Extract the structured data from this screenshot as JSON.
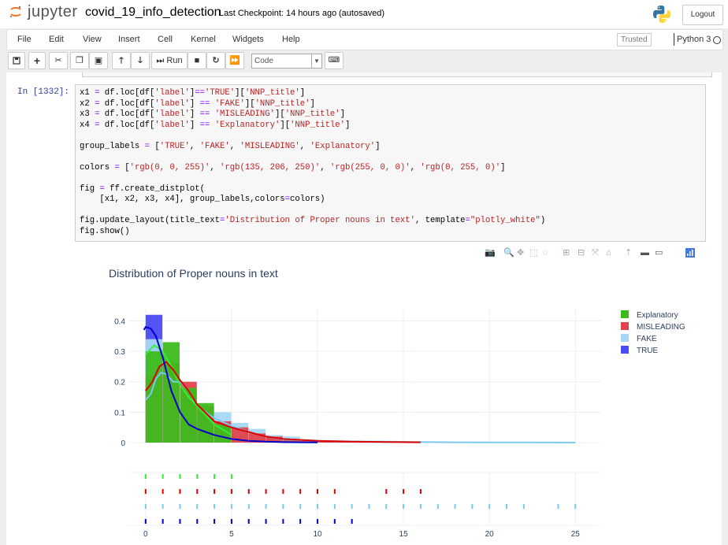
{
  "header": {
    "logo_text": "jupyter",
    "notebook_name": "covid_19_info_detection",
    "checkpoint": "Last Checkpoint: 14 hours ago",
    "autosave": "(autosaved)",
    "logout_label": "Logout"
  },
  "menubar": {
    "items": [
      "File",
      "Edit",
      "View",
      "Insert",
      "Cell",
      "Kernel",
      "Widgets",
      "Help"
    ],
    "trusted": "Trusted",
    "kernel": "Python 3"
  },
  "toolbar": {
    "run_label": "Run",
    "cell_type": "Code",
    "icons": [
      "save-icon",
      "plus-icon",
      "scissors-icon",
      "copy-icon",
      "paste-icon",
      "arrow-up-icon",
      "arrow-down-icon",
      "run-icon",
      "stop-icon",
      "restart-icon",
      "fast-forward-icon",
      "keyboard-icon"
    ]
  },
  "cell": {
    "prompt": "In [1332]:",
    "code_lines": [
      "x1 = df.loc[df['label']=='TRUE']['NNP_title']",
      "x2 = df.loc[df['label'] == 'FAKE']['NNP_title']",
      "x3 = df.loc[df['label'] == 'MISLEADING']['NNP_title']",
      "x4 = df.loc[df['label'] == 'Explanatory']['NNP_title']",
      "",
      "group_labels = ['TRUE', 'FAKE', 'MISLEADING', 'Explanatory']",
      "",
      "colors = ['rgb(0, 0, 255)', 'rgb(135, 206, 250)', 'rgb(255, 0, 0)', 'rgb(0, 255, 0)']",
      "",
      "fig = ff.create_distplot(",
      "    [x1, x2, x3, x4], group_labels,colors=colors)",
      "",
      "fig.update_layout(title_text='Distribution of Proper nouns in text', template=\"plotly_white\")",
      "fig.show()"
    ]
  },
  "modebar": {
    "icons": [
      "camera-icon",
      "zoom-icon",
      "pan-icon",
      "box-select-icon",
      "lasso-icon",
      "zoom-in-icon",
      "zoom-out-icon",
      "autoscale-icon",
      "home-icon",
      "spike-lines-icon",
      "hover-closest-icon",
      "hover-compare-icon",
      "plotly-logo-icon"
    ]
  },
  "chart_data": {
    "type": "bar",
    "title": "Distribution of Proper nouns in text",
    "xlim": [
      -1,
      26.5
    ],
    "ylim": [
      0,
      0.44
    ],
    "yticks": [
      0,
      0.1,
      0.2,
      0.3,
      0.4
    ],
    "ytick_labels": [
      "0",
      "0.1",
      "0.2",
      "0.3",
      "0.4"
    ],
    "xticks": [
      0,
      5,
      10,
      15,
      20,
      25
    ],
    "xtick_labels": [
      "0",
      "5",
      "10",
      "15",
      "20",
      "25"
    ],
    "grid": true,
    "legend_position": "top-right",
    "legend": [
      "Explanatory",
      "MISLEADING",
      "FAKE",
      "TRUE"
    ],
    "series": [
      {
        "name": "TRUE",
        "color": "#4b4bf4",
        "line_color": "#0000cc",
        "bin_width": 1,
        "bins": [
          [
            0,
            0.42
          ],
          [
            1,
            0.26
          ],
          [
            2,
            0.1
          ],
          [
            3,
            0.07
          ],
          [
            4,
            0.04
          ],
          [
            5,
            0.025
          ],
          [
            6,
            0.015
          ],
          [
            7,
            0.01
          ],
          [
            8,
            0.005
          ],
          [
            9,
            0.003
          ],
          [
            10,
            0.002
          ],
          [
            11,
            0.001
          ]
        ],
        "kde": [
          [
            -0.1,
            0.37
          ],
          [
            0,
            0.38
          ],
          [
            0.3,
            0.375
          ],
          [
            0.6,
            0.35
          ],
          [
            1,
            0.28
          ],
          [
            1.5,
            0.17
          ],
          [
            2,
            0.1
          ],
          [
            2.5,
            0.06
          ],
          [
            3,
            0.045
          ],
          [
            3.5,
            0.035
          ],
          [
            4,
            0.025
          ],
          [
            5,
            0.012
          ],
          [
            6,
            0.006
          ],
          [
            7,
            0.003
          ],
          [
            8,
            0.0015
          ],
          [
            9,
            0.001
          ],
          [
            10,
            0.0005
          ]
        ],
        "rugs": [
          0,
          1,
          2,
          3,
          4,
          5,
          6,
          7,
          8,
          9,
          10,
          11,
          12
        ]
      },
      {
        "name": "FAKE",
        "color": "#a6d7f5",
        "line_color": "#7ac8ee",
        "bin_width": 1,
        "bins": [
          [
            0,
            0.34
          ],
          [
            1,
            0.25
          ],
          [
            2,
            0.17
          ],
          [
            3,
            0.12
          ],
          [
            4,
            0.1
          ],
          [
            5,
            0.065
          ],
          [
            6,
            0.045
          ],
          [
            7,
            0.025
          ],
          [
            8,
            0.02
          ],
          [
            9,
            0.01
          ],
          [
            10,
            0.008
          ],
          [
            11,
            0.005
          ],
          [
            12,
            0.004
          ],
          [
            13,
            0.003
          ],
          [
            14,
            0.002
          ],
          [
            15,
            0.002
          ],
          [
            16,
            0.001
          ]
        ],
        "kde": [
          [
            0,
            0.14
          ],
          [
            0.3,
            0.16
          ],
          [
            0.6,
            0.21
          ],
          [
            0.9,
            0.23
          ],
          [
            1.2,
            0.225
          ],
          [
            1.6,
            0.2
          ],
          [
            2,
            0.2
          ],
          [
            2.5,
            0.17
          ],
          [
            3,
            0.12
          ],
          [
            4,
            0.08
          ],
          [
            5,
            0.055
          ],
          [
            6,
            0.035
          ],
          [
            7,
            0.02
          ],
          [
            8,
            0.01
          ],
          [
            10,
            0.006
          ],
          [
            12,
            0.004
          ],
          [
            14,
            0.003
          ],
          [
            16,
            0.002
          ],
          [
            18,
            0.001
          ],
          [
            20,
            0.0006
          ],
          [
            22,
            0.0004
          ],
          [
            25,
            0.0002
          ]
        ],
        "rugs": [
          0,
          1,
          2,
          3,
          4,
          5,
          6,
          7,
          8,
          9,
          10,
          11,
          12,
          13,
          14,
          15,
          16,
          17,
          18,
          19,
          20,
          21,
          22,
          24,
          25
        ]
      },
      {
        "name": "MISLEADING",
        "color": "#e0444c",
        "line_color": "#dd0000",
        "bin_width": 1,
        "bins": [
          [
            0,
            0.22
          ],
          [
            1,
            0.26
          ],
          [
            2,
            0.2
          ],
          [
            3,
            0.12
          ],
          [
            4,
            0.07
          ],
          [
            5,
            0.05
          ],
          [
            6,
            0.03
          ],
          [
            7,
            0.02
          ],
          [
            8,
            0.012
          ],
          [
            9,
            0.008
          ],
          [
            10,
            0.005
          ],
          [
            11,
            0.003
          ],
          [
            12,
            0.002
          ],
          [
            14,
            0.001
          ],
          [
            15,
            0.001
          ]
        ],
        "kde": [
          [
            0,
            0.17
          ],
          [
            0.4,
            0.2
          ],
          [
            0.8,
            0.25
          ],
          [
            1.2,
            0.265
          ],
          [
            1.6,
            0.24
          ],
          [
            2,
            0.205
          ],
          [
            2.5,
            0.17
          ],
          [
            3,
            0.125
          ],
          [
            4,
            0.07
          ],
          [
            5,
            0.05
          ],
          [
            6,
            0.035
          ],
          [
            7,
            0.02
          ],
          [
            8,
            0.012
          ],
          [
            10,
            0.006
          ],
          [
            12,
            0.003
          ],
          [
            14,
            0.002
          ],
          [
            16,
            0.001
          ]
        ],
        "rugs": [
          0,
          1,
          2,
          3,
          4,
          5,
          6,
          7,
          8,
          9,
          10,
          11,
          14,
          15,
          16
        ]
      },
      {
        "name": "Explanatory",
        "color": "#3cbc1c",
        "line_color": "#33ee33",
        "bin_width": 1,
        "bins": [
          [
            0,
            0.3
          ],
          [
            1,
            0.33
          ],
          [
            2,
            0.18
          ],
          [
            3,
            0.13
          ],
          [
            4,
            0.06
          ]
        ],
        "kde": [
          [
            0,
            0.29
          ],
          [
            0.5,
            0.32
          ],
          [
            1,
            0.3
          ],
          [
            1.5,
            0.25
          ],
          [
            2,
            0.19
          ],
          [
            2.5,
            0.15
          ],
          [
            3,
            0.12
          ],
          [
            3.5,
            0.09
          ],
          [
            4,
            0.06
          ],
          [
            5,
            0.025
          ]
        ],
        "rugs": [
          0,
          1,
          2,
          3,
          4,
          5
        ]
      }
    ]
  }
}
